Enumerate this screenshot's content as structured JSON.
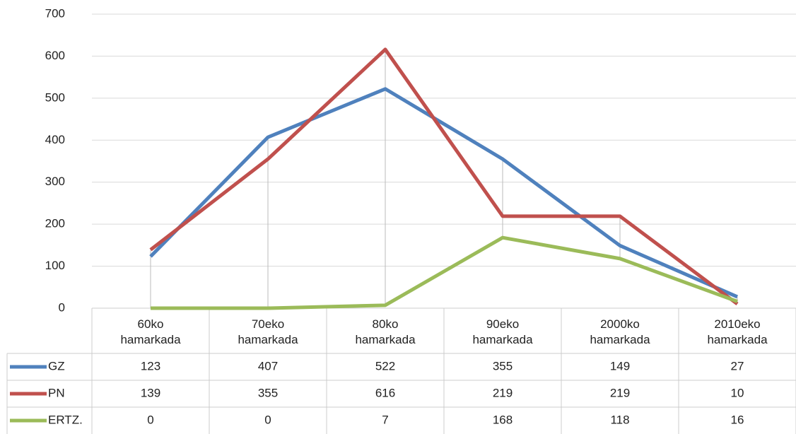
{
  "chart_data": {
    "type": "line",
    "categories": [
      "60ko hamarkada",
      "70eko hamarkada",
      "80ko hamarkada",
      "90eko hamarkada",
      "2000ko hamarkada",
      "2010eko hamarkada"
    ],
    "series": [
      {
        "name": "GZ",
        "color": "#4f81bd",
        "values": [
          123,
          407,
          522,
          355,
          149,
          27
        ]
      },
      {
        "name": "PN",
        "color": "#c0504d",
        "values": [
          139,
          355,
          616,
          219,
          219,
          10
        ]
      },
      {
        "name": "ERTZ.",
        "color": "#9bbb59",
        "values": [
          0,
          0,
          7,
          168,
          118,
          16
        ]
      }
    ],
    "ylim": [
      0,
      700
    ],
    "yticks": [
      0,
      100,
      200,
      300,
      400,
      500,
      600,
      700
    ],
    "grid": true,
    "high_low_lines": true
  }
}
